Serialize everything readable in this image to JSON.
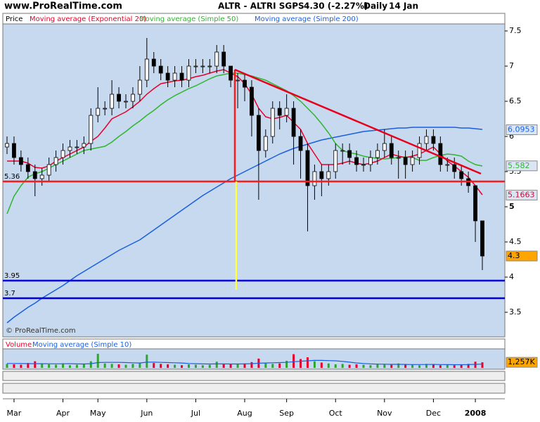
{
  "header": {
    "site": "www.ProRealTime.com",
    "symbol": "ALTR - ALTRI SGPS",
    "quote": "4.30 (-2.27%)",
    "period": "Daily",
    "date": "14 Jan"
  },
  "chart_data": [
    {
      "type": "candlestick",
      "name": "Price",
      "background": "#c7d9ee",
      "categories": [
        null,
        "Mar",
        null,
        null,
        null,
        null,
        null,
        null,
        "Apr",
        null,
        null,
        null,
        null,
        "May",
        null,
        null,
        null,
        null,
        null,
        null,
        "Jun",
        null,
        null,
        null,
        null,
        null,
        null,
        "Jul",
        null,
        null,
        null,
        null,
        null,
        null,
        "Aug",
        null,
        null,
        null,
        null,
        null,
        "Sep",
        null,
        null,
        null,
        null,
        null,
        null,
        "Oct",
        null,
        null,
        null,
        null,
        null,
        null,
        "Nov",
        null,
        null,
        null,
        null,
        null,
        null,
        "Dec",
        null,
        null,
        null,
        null,
        null,
        "2008",
        null
      ],
      "open": [
        5.85,
        5.9,
        5.7,
        5.6,
        5.5,
        5.4,
        5.45,
        5.6,
        5.7,
        5.8,
        5.85,
        5.85,
        5.9,
        6.3,
        6.4,
        6.4,
        6.6,
        6.5,
        6.5,
        6.6,
        6.8,
        7.1,
        7.0,
        6.9,
        6.8,
        6.9,
        6.8,
        7.0,
        7.0,
        7.0,
        7.0,
        7.2,
        7.0,
        6.8,
        6.8,
        6.7,
        6.3,
        5.8,
        6.0,
        6.4,
        6.3,
        6.4,
        6.0,
        5.8,
        5.3,
        5.5,
        5.4,
        5.5,
        5.8,
        5.8,
        5.7,
        5.6,
        5.6,
        5.7,
        5.8,
        5.9,
        5.7,
        5.7,
        5.6,
        5.7,
        5.9,
        6.0,
        5.9,
        5.6,
        5.6,
        5.5,
        5.4,
        5.3,
        4.8
      ],
      "high": [
        6.0,
        6.0,
        5.8,
        5.7,
        5.6,
        5.55,
        5.7,
        5.8,
        5.9,
        5.95,
        5.95,
        6.0,
        6.4,
        6.7,
        6.5,
        6.8,
        6.7,
        6.6,
        6.7,
        7.0,
        7.4,
        7.2,
        7.1,
        7.0,
        7.0,
        7.0,
        7.1,
        7.1,
        7.1,
        7.1,
        7.3,
        7.3,
        7.0,
        6.9,
        6.9,
        6.8,
        6.4,
        6.1,
        6.5,
        6.5,
        6.6,
        6.5,
        6.1,
        5.9,
        5.6,
        5.6,
        5.6,
        5.9,
        5.9,
        5.9,
        5.8,
        5.7,
        5.8,
        5.9,
        6.1,
        6.0,
        5.8,
        5.8,
        5.8,
        6.0,
        6.1,
        6.1,
        6.0,
        5.7,
        5.7,
        5.6,
        5.5,
        5.3,
        4.8
      ],
      "low": [
        5.75,
        5.6,
        5.5,
        5.4,
        5.15,
        5.3,
        5.35,
        5.5,
        5.6,
        5.7,
        5.75,
        5.75,
        5.8,
        6.2,
        6.3,
        6.3,
        6.4,
        6.4,
        6.4,
        6.5,
        6.7,
        6.9,
        6.8,
        6.7,
        6.7,
        6.7,
        6.7,
        6.9,
        6.9,
        6.9,
        6.9,
        6.9,
        6.7,
        6.4,
        6.5,
        6.0,
        5.1,
        5.7,
        5.9,
        6.1,
        6.2,
        5.6,
        5.4,
        4.65,
        5.1,
        5.15,
        5.3,
        5.4,
        5.6,
        5.6,
        5.5,
        5.5,
        5.5,
        5.6,
        5.7,
        5.6,
        5.4,
        5.4,
        5.5,
        5.6,
        5.8,
        5.8,
        5.5,
        5.5,
        5.4,
        5.3,
        5.2,
        4.5,
        4.1
      ],
      "close": [
        5.9,
        5.7,
        5.6,
        5.5,
        5.4,
        5.45,
        5.6,
        5.7,
        5.8,
        5.85,
        5.85,
        5.9,
        6.3,
        6.4,
        6.4,
        6.6,
        6.5,
        6.5,
        6.6,
        6.8,
        7.1,
        7.0,
        6.9,
        6.8,
        6.9,
        6.8,
        7.0,
        7.0,
        7.0,
        7.0,
        7.2,
        7.0,
        6.8,
        6.8,
        6.7,
        6.3,
        5.8,
        6.0,
        6.4,
        6.3,
        6.4,
        6.0,
        5.8,
        5.3,
        5.5,
        5.4,
        5.5,
        5.8,
        5.8,
        5.7,
        5.6,
        5.6,
        5.7,
        5.8,
        5.9,
        5.7,
        5.7,
        5.6,
        5.7,
        5.9,
        6.0,
        5.9,
        5.6,
        5.6,
        5.5,
        5.4,
        5.3,
        4.8,
        4.3
      ],
      "last": 4.3,
      "last_fill": "#ffa500",
      "up_color": "#ffffff",
      "down_color": "#000000",
      "series": [
        {
          "name": "Moving average (Exponential 20)",
          "color": "#e8002a",
          "last": 5.1663,
          "values": [
            5.65,
            5.65,
            5.65,
            5.62,
            5.56,
            5.55,
            5.58,
            5.65,
            5.7,
            5.75,
            5.8,
            5.85,
            5.93,
            6.0,
            6.12,
            6.25,
            6.3,
            6.35,
            6.42,
            6.5,
            6.6,
            6.68,
            6.75,
            6.77,
            6.79,
            6.8,
            6.82,
            6.85,
            6.87,
            6.9,
            6.93,
            6.95,
            6.9,
            6.85,
            6.75,
            6.6,
            6.4,
            6.28,
            6.25,
            6.27,
            6.3,
            6.2,
            6.1,
            5.9,
            5.75,
            5.6,
            5.6,
            5.6,
            5.62,
            5.65,
            5.62,
            5.6,
            5.62,
            5.65,
            5.7,
            5.75,
            5.72,
            5.7,
            5.72,
            5.75,
            5.8,
            5.85,
            5.75,
            5.65,
            5.58,
            5.5,
            5.42,
            5.3,
            5.17
          ]
        },
        {
          "name": "Moving average (Simple 50)",
          "color": "#2fb52f",
          "last": 5.582,
          "values": [
            4.9,
            5.15,
            5.3,
            5.42,
            5.47,
            5.5,
            5.55,
            5.6,
            5.65,
            5.7,
            5.75,
            5.8,
            5.82,
            5.84,
            5.86,
            5.92,
            6.0,
            6.07,
            6.15,
            6.22,
            6.3,
            6.37,
            6.45,
            6.52,
            6.58,
            6.63,
            6.68,
            6.72,
            6.77,
            6.82,
            6.86,
            6.88,
            6.9,
            6.9,
            6.88,
            6.86,
            6.83,
            6.8,
            6.75,
            6.7,
            6.65,
            6.58,
            6.5,
            6.4,
            6.3,
            6.18,
            6.05,
            5.9,
            5.8,
            5.77,
            5.75,
            5.72,
            5.7,
            5.69,
            5.68,
            5.69,
            5.7,
            5.71,
            5.7,
            5.66,
            5.66,
            5.7,
            5.73,
            5.75,
            5.74,
            5.72,
            5.65,
            5.6,
            5.58
          ]
        },
        {
          "name": "Moving average (Simple 200)",
          "color": "#1a5fe0",
          "last": 6.0953,
          "values": [
            3.35,
            3.43,
            3.5,
            3.57,
            3.63,
            3.7,
            3.76,
            3.82,
            3.88,
            3.95,
            4.02,
            4.08,
            4.14,
            4.2,
            4.26,
            4.32,
            4.38,
            4.43,
            4.48,
            4.53,
            4.6,
            4.67,
            4.74,
            4.81,
            4.88,
            4.95,
            5.02,
            5.09,
            5.16,
            5.22,
            5.28,
            5.34,
            5.4,
            5.45,
            5.5,
            5.55,
            5.6,
            5.65,
            5.7,
            5.75,
            5.79,
            5.83,
            5.86,
            5.89,
            5.92,
            5.95,
            5.97,
            5.99,
            6.01,
            6.03,
            6.05,
            6.07,
            6.08,
            6.09,
            6.1,
            6.11,
            6.12,
            6.12,
            6.13,
            6.13,
            6.13,
            6.13,
            6.13,
            6.13,
            6.13,
            6.12,
            6.12,
            6.11,
            6.1
          ]
        }
      ],
      "levels": [
        {
          "value": 5.36,
          "color": "#ff1a1a"
        },
        {
          "value": 3.95,
          "color": "#0000dd"
        },
        {
          "value": 3.7,
          "color": "#0000dd"
        }
      ],
      "trendline": {
        "from": 6.95,
        "to": 5.47,
        "color": "#e8001c"
      },
      "vlines": [
        {
          "from": 6.95,
          "to": 5.36,
          "color": "#ff1a1a"
        },
        {
          "from": 5.36,
          "to": 3.82,
          "color": "#ffff40"
        }
      ],
      "ylim": [
        3.15,
        7.75
      ],
      "yticks": [
        3.5,
        4,
        4.5,
        5,
        5.5,
        6,
        6.5,
        7,
        7.5
      ],
      "bold_tick": 5,
      "watermark": "© ProRealTime.com"
    },
    {
      "type": "bar",
      "name": "Volume",
      "name_color": "#e8002a",
      "up_color": "#2fa52f",
      "down_color": "#e8002a",
      "ylim": [
        0,
        4000
      ],
      "values": [
        900,
        800,
        700,
        1100,
        1500,
        900,
        800,
        700,
        1000,
        600,
        700,
        800,
        1500,
        3200,
        1000,
        900,
        800,
        700,
        900,
        1200,
        3000,
        1100,
        900,
        800,
        700,
        600,
        800,
        700,
        600,
        700,
        1400,
        900,
        800,
        900,
        1000,
        1300,
        2100,
        1200,
        900,
        1000,
        1600,
        3100,
        2000,
        2400,
        1500,
        1200,
        1000,
        800,
        900,
        700,
        800,
        700,
        600,
        900,
        800,
        700,
        1000,
        800,
        700,
        600,
        900,
        800,
        600,
        700,
        600,
        800,
        900,
        1400,
        1257
      ],
      "last": {
        "value": 1257,
        "label": "1,257K"
      },
      "last_fill": "#ffa500",
      "series": [
        {
          "name": "Moving average (Simple 10)",
          "color": "#1a5fe0",
          "values": [
            1000,
            1000,
            980,
            960,
            950,
            940,
            930,
            920,
            930,
            950,
            900,
            880,
            950,
            1200,
            1250,
            1250,
            1250,
            1200,
            1150,
            1100,
            1300,
            1300,
            1250,
            1200,
            1150,
            1100,
            1000,
            950,
            900,
            880,
            900,
            900,
            880,
            880,
            900,
            950,
            1050,
            1100,
            1150,
            1200,
            1250,
            1400,
            1500,
            1600,
            1700,
            1700,
            1650,
            1600,
            1450,
            1300,
            1100,
            1000,
            900,
            850,
            830,
            800,
            800,
            780,
            760,
            750,
            770,
            780,
            760,
            740,
            720,
            720,
            740,
            800,
            850
          ]
        }
      ]
    }
  ]
}
